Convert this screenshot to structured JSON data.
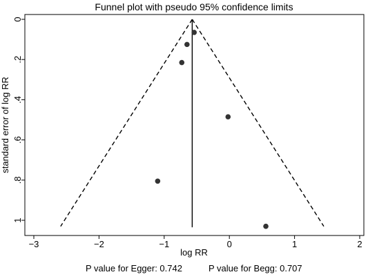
{
  "chart_data": {
    "type": "scatter",
    "title": "Funnel plot with pseudo 95% confidence limits",
    "xlabel": "log RR",
    "ylabel": "standard error of log RR",
    "xlim": [
      -3,
      2
    ],
    "ylim": [
      1.03,
      -0.02
    ],
    "y_inverted": true,
    "xticks": [
      -3,
      -2,
      -1,
      0,
      1,
      2
    ],
    "xtick_labels": [
      "−3",
      "−2",
      "−1",
      "0",
      "1",
      "2"
    ],
    "yticks": [
      0,
      0.2,
      0.4,
      0.6,
      0.8,
      1
    ],
    "ytick_labels": [
      "0",
      ".2",
      ".4",
      ".6",
      ".8",
      "1"
    ],
    "grid": false,
    "legend": "none",
    "pooled_estimate": -0.57,
    "pooled_line_range": [
      0,
      1.035
    ],
    "ci_limit_range": [
      0,
      1.03
    ],
    "points": [
      {
        "x": -0.54,
        "y": 0.065
      },
      {
        "x": -0.65,
        "y": 0.125
      },
      {
        "x": -0.73,
        "y": 0.215
      },
      {
        "x": -0.02,
        "y": 0.485
      },
      {
        "x": -1.1,
        "y": 0.805
      },
      {
        "x": 0.56,
        "y": 1.03
      }
    ]
  },
  "footer": {
    "egger": "P value for Egger: 0.742",
    "begg": "P value for Begg: 0.707"
  }
}
